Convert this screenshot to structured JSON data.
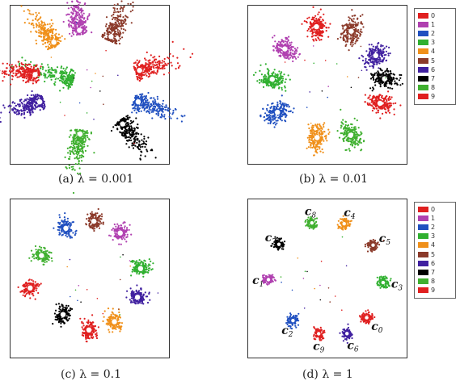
{
  "legend": {
    "labels": [
      "0",
      "1",
      "2",
      "3",
      "4",
      "5",
      "6",
      "7",
      "8",
      "9"
    ],
    "colors": [
      "#e02020",
      "#b040b0",
      "#2050c0",
      "#30b030",
      "#f0901a",
      "#8b3a2a",
      "#4020a0",
      "#000000",
      "#40b030",
      "#e02020"
    ]
  },
  "chart_data": [
    {
      "type": "scatter",
      "title": "(a) λ = 0.001",
      "shape": "petal",
      "clusters": [
        {
          "digit": "0",
          "angle": -15,
          "radius": 0.72,
          "color": "#e02020"
        },
        {
          "digit": "1",
          "angle": -100,
          "radius": 0.75,
          "color": "#b040b0"
        },
        {
          "digit": "2",
          "angle": 20,
          "radius": 0.72,
          "color": "#2050c0"
        },
        {
          "digit": "3",
          "angle": -165,
          "radius": 0.0,
          "color": "#30b030"
        },
        {
          "digit": "4",
          "angle": -130,
          "radius": 0.75,
          "color": "#f0901a"
        },
        {
          "digit": "5",
          "angle": -65,
          "radius": 0.72,
          "color": "#8b3a2a"
        },
        {
          "digit": "6",
          "angle": 160,
          "radius": 0.72,
          "color": "#4020a0"
        },
        {
          "digit": "7",
          "angle": 50,
          "radius": 0.72,
          "color": "#000000"
        },
        {
          "digit": "8",
          "angle": 100,
          "radius": 0.7,
          "color": "#40b030"
        },
        {
          "digit": "9",
          "angle": -170,
          "radius": 0.75,
          "color": "#e02020"
        }
      ]
    },
    {
      "type": "scatter",
      "title": "(b) λ = 0.01",
      "shape": "blob",
      "clusters": [
        {
          "digit": "0",
          "angle": 20,
          "radius": 0.78,
          "color": "#e02020"
        },
        {
          "digit": "1",
          "angle": -140,
          "radius": 0.75,
          "color": "#b040b0"
        },
        {
          "digit": "2",
          "angle": 150,
          "radius": 0.78,
          "color": "#2050c0"
        },
        {
          "digit": "3",
          "angle": -175,
          "radius": 0.75,
          "color": "#30b030"
        },
        {
          "digit": "4",
          "angle": 100,
          "radius": 0.75,
          "color": "#f0901a"
        },
        {
          "digit": "5",
          "angle": -65,
          "radius": 0.8,
          "color": "#8b3a2a"
        },
        {
          "digit": "6",
          "angle": -30,
          "radius": 0.78,
          "color": "#4020a0"
        },
        {
          "digit": "7",
          "angle": -5,
          "radius": 0.8,
          "color": "#000000"
        },
        {
          "digit": "8",
          "angle": 65,
          "radius": 0.78,
          "color": "#40b030"
        },
        {
          "digit": "9",
          "angle": -100,
          "radius": 0.8,
          "color": "#e02020"
        }
      ]
    },
    {
      "type": "scatter",
      "title": "(c) λ = 0.1",
      "shape": "small",
      "clusters": [
        {
          "digit": "0",
          "angle": 90,
          "radius": 0.72,
          "color": "#e02020"
        },
        {
          "digit": "1",
          "angle": -55,
          "radius": 0.75,
          "color": "#b040b0"
        },
        {
          "digit": "2",
          "angle": -115,
          "radius": 0.75,
          "color": "#2050c0"
        },
        {
          "digit": "3",
          "angle": -10,
          "radius": 0.72,
          "color": "#30b030"
        },
        {
          "digit": "4",
          "angle": 60,
          "radius": 0.7,
          "color": "#f0901a"
        },
        {
          "digit": "5",
          "angle": -85,
          "radius": 0.78,
          "color": "#8b3a2a"
        },
        {
          "digit": "6",
          "angle": 22,
          "radius": 0.72,
          "color": "#4020a0"
        },
        {
          "digit": "7",
          "angle": 125,
          "radius": 0.62,
          "color": "#000000"
        },
        {
          "digit": "8",
          "angle": -155,
          "radius": 0.72,
          "color": "#40b030"
        },
        {
          "digit": "9",
          "angle": 170,
          "radius": 0.82,
          "color": "#e02020"
        }
      ]
    },
    {
      "type": "scatter",
      "title": "(d) λ = 1",
      "shape": "tiny",
      "clusters": [
        {
          "digit": "0",
          "angle": 45,
          "radius": 0.78,
          "color": "#e02020",
          "label": "c",
          "sub": "0"
        },
        {
          "digit": "1",
          "angle": 178,
          "radius": 0.8,
          "color": "#b040b0",
          "label": "c",
          "sub": "1"
        },
        {
          "digit": "2",
          "angle": 128,
          "radius": 0.75,
          "color": "#2050c0",
          "label": "c",
          "sub": "2"
        },
        {
          "digit": "3",
          "angle": 5,
          "radius": 0.78,
          "color": "#30b030",
          "label": "c",
          "sub": "3"
        },
        {
          "digit": "4",
          "angle": -72,
          "radius": 0.78,
          "color": "#f0901a",
          "label": "c",
          "sub": "4"
        },
        {
          "digit": "5",
          "angle": -35,
          "radius": 0.78,
          "color": "#8b3a2a",
          "label": "c",
          "sub": "5"
        },
        {
          "digit": "6",
          "angle": 70,
          "radius": 0.82,
          "color": "#4020a0",
          "label": "c",
          "sub": "6"
        },
        {
          "digit": "7",
          "angle": -145,
          "radius": 0.8,
          "color": "#000000",
          "label": "c",
          "sub": "7"
        },
        {
          "digit": "8",
          "angle": -105,
          "radius": 0.78,
          "color": "#40b030",
          "label": "c",
          "sub": "8"
        },
        {
          "digit": "9",
          "angle": 98,
          "radius": 0.78,
          "color": "#e02020",
          "label": "c",
          "sub": "9"
        }
      ]
    }
  ]
}
